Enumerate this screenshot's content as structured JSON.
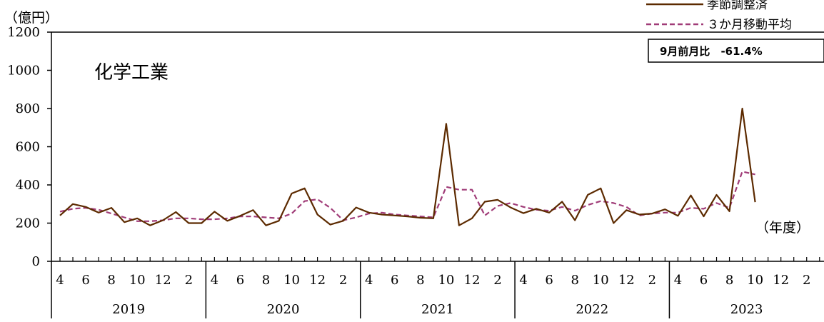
{
  "chart_data": {
    "type": "line",
    "title": "化学工業",
    "ylabel": "（億円）",
    "xlabel": "（年度）",
    "ylim": [
      0,
      1200
    ],
    "yticks": [
      "0",
      "200",
      "400",
      "600",
      "800",
      "1000",
      "1200"
    ],
    "month_tick_labels": [
      "4",
      "6",
      "8",
      "10",
      "12",
      "2"
    ],
    "years": [
      "2019",
      "2020",
      "2021",
      "2022",
      "2023"
    ],
    "annotation": "9月前月比　-61.4%",
    "legend_position": "top-right",
    "grid": false,
    "series": [
      {
        "name": "季節調整済",
        "color": "#5c2a00",
        "dash": "solid",
        "values": [
          240,
          300,
          285,
          255,
          280,
          205,
          225,
          188,
          215,
          258,
          200,
          200,
          260,
          212,
          238,
          268,
          188,
          212,
          355,
          382,
          245,
          192,
          212,
          282,
          255,
          245,
          240,
          235,
          228,
          225,
          720,
          188,
          225,
          312,
          322,
          282,
          252,
          275,
          255,
          312,
          215,
          348,
          382,
          200,
          268,
          245,
          250,
          272,
          238,
          345,
          235,
          348,
          262,
          800,
          310
        ]
      },
      {
        "name": "３か月移動平均",
        "color": "#a03c78",
        "dash": "dashed",
        "values": [
          260,
          275,
          280,
          270,
          250,
          230,
          210,
          210,
          215,
          225,
          225,
          220,
          220,
          225,
          235,
          235,
          230,
          225,
          250,
          315,
          325,
          280,
          215,
          230,
          250,
          255,
          245,
          240,
          235,
          230,
          390,
          375,
          375,
          240,
          290,
          305,
          285,
          270,
          265,
          285,
          265,
          295,
          315,
          305,
          285,
          240,
          250,
          255,
          255,
          280,
          275,
          305,
          280,
          470,
          455
        ]
      }
    ]
  }
}
